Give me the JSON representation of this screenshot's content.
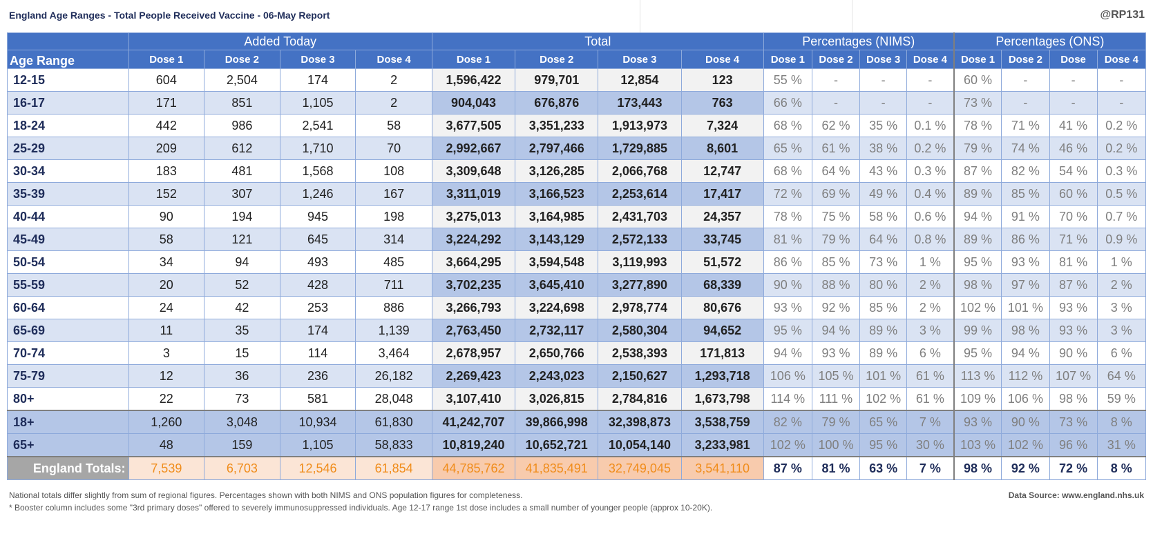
{
  "title": "England Age Ranges - Total People Received Vaccine - 06-May Report",
  "handle": "@RP131",
  "groups": {
    "added": "Added Today",
    "total": "Total",
    "nims": "Percentages (NIMS)",
    "ons": "Percentages (ONS)"
  },
  "age_header": "Age Range",
  "sub_headers": {
    "added": [
      "Dose 1",
      "Dose 2",
      "Dose 3",
      "Dose 4"
    ],
    "total": [
      "Dose 1",
      "Dose 2",
      "Dose 3",
      "Dose 4"
    ],
    "nims": [
      "Dose 1",
      "Dose 2",
      "Dose 3",
      "Dose 4"
    ],
    "ons": [
      "Dose 1",
      "Dose 2",
      "Dose",
      "Dose 4"
    ]
  },
  "rows": [
    {
      "age": "12-15",
      "added": [
        "604",
        "2,504",
        "174",
        "2"
      ],
      "total": [
        "1,596,422",
        "979,701",
        "12,854",
        "123"
      ],
      "nims": [
        "55 %",
        "-",
        "-",
        "-"
      ],
      "ons": [
        "60 %",
        "-",
        "-",
        "-"
      ]
    },
    {
      "age": "16-17",
      "added": [
        "171",
        "851",
        "1,105",
        "2"
      ],
      "total": [
        "904,043",
        "676,876",
        "173,443",
        "763"
      ],
      "nims": [
        "66 %",
        "-",
        "-",
        "-"
      ],
      "ons": [
        "73 %",
        "-",
        "-",
        "-"
      ]
    },
    {
      "age": "18-24",
      "added": [
        "442",
        "986",
        "2,541",
        "58"
      ],
      "total": [
        "3,677,505",
        "3,351,233",
        "1,913,973",
        "7,324"
      ],
      "nims": [
        "68 %",
        "62 %",
        "35 %",
        "0.1 %"
      ],
      "ons": [
        "78 %",
        "71 %",
        "41 %",
        "0.2 %"
      ]
    },
    {
      "age": "25-29",
      "added": [
        "209",
        "612",
        "1,710",
        "70"
      ],
      "total": [
        "2,992,667",
        "2,797,466",
        "1,729,885",
        "8,601"
      ],
      "nims": [
        "65 %",
        "61 %",
        "38 %",
        "0.2 %"
      ],
      "ons": [
        "79 %",
        "74 %",
        "46 %",
        "0.2 %"
      ]
    },
    {
      "age": "30-34",
      "added": [
        "183",
        "481",
        "1,568",
        "108"
      ],
      "total": [
        "3,309,648",
        "3,126,285",
        "2,066,768",
        "12,747"
      ],
      "nims": [
        "68 %",
        "64 %",
        "43 %",
        "0.3 %"
      ],
      "ons": [
        "87 %",
        "82 %",
        "54 %",
        "0.3 %"
      ]
    },
    {
      "age": "35-39",
      "added": [
        "152",
        "307",
        "1,246",
        "167"
      ],
      "total": [
        "3,311,019",
        "3,166,523",
        "2,253,614",
        "17,417"
      ],
      "nims": [
        "72 %",
        "69 %",
        "49 %",
        "0.4 %"
      ],
      "ons": [
        "89 %",
        "85 %",
        "60 %",
        "0.5 %"
      ]
    },
    {
      "age": "40-44",
      "added": [
        "90",
        "194",
        "945",
        "198"
      ],
      "total": [
        "3,275,013",
        "3,164,985",
        "2,431,703",
        "24,357"
      ],
      "nims": [
        "78 %",
        "75 %",
        "58 %",
        "0.6 %"
      ],
      "ons": [
        "94 %",
        "91 %",
        "70 %",
        "0.7 %"
      ]
    },
    {
      "age": "45-49",
      "added": [
        "58",
        "121",
        "645",
        "314"
      ],
      "total": [
        "3,224,292",
        "3,143,129",
        "2,572,133",
        "33,745"
      ],
      "nims": [
        "81 %",
        "79 %",
        "64 %",
        "0.8 %"
      ],
      "ons": [
        "89 %",
        "86 %",
        "71 %",
        "0.9 %"
      ]
    },
    {
      "age": "50-54",
      "added": [
        "34",
        "94",
        "493",
        "485"
      ],
      "total": [
        "3,664,295",
        "3,594,548",
        "3,119,993",
        "51,572"
      ],
      "nims": [
        "86 %",
        "85 %",
        "73 %",
        "1 %"
      ],
      "ons": [
        "95 %",
        "93 %",
        "81 %",
        "1 %"
      ]
    },
    {
      "age": "55-59",
      "added": [
        "20",
        "52",
        "428",
        "711"
      ],
      "total": [
        "3,702,235",
        "3,645,410",
        "3,277,890",
        "68,339"
      ],
      "nims": [
        "90 %",
        "88 %",
        "80 %",
        "2 %"
      ],
      "ons": [
        "98 %",
        "97 %",
        "87 %",
        "2 %"
      ]
    },
    {
      "age": "60-64",
      "added": [
        "24",
        "42",
        "253",
        "886"
      ],
      "total": [
        "3,266,793",
        "3,224,698",
        "2,978,774",
        "80,676"
      ],
      "nims": [
        "93 %",
        "92 %",
        "85 %",
        "2 %"
      ],
      "ons": [
        "102 %",
        "101 %",
        "93 %",
        "3 %"
      ]
    },
    {
      "age": "65-69",
      "added": [
        "11",
        "35",
        "174",
        "1,139"
      ],
      "total": [
        "2,763,450",
        "2,732,117",
        "2,580,304",
        "94,652"
      ],
      "nims": [
        "95 %",
        "94 %",
        "89 %",
        "3 %"
      ],
      "ons": [
        "99 %",
        "98 %",
        "93 %",
        "3 %"
      ]
    },
    {
      "age": "70-74",
      "added": [
        "3",
        "15",
        "114",
        "3,464"
      ],
      "total": [
        "2,678,957",
        "2,650,766",
        "2,538,393",
        "171,813"
      ],
      "nims": [
        "94 %",
        "93 %",
        "89 %",
        "6 %"
      ],
      "ons": [
        "95 %",
        "94 %",
        "90 %",
        "6 %"
      ]
    },
    {
      "age": "75-79",
      "added": [
        "12",
        "36",
        "236",
        "26,182"
      ],
      "total": [
        "2,269,423",
        "2,243,023",
        "2,150,627",
        "1,293,718"
      ],
      "nims": [
        "106 %",
        "105 %",
        "101 %",
        "61 %"
      ],
      "ons": [
        "113 %",
        "112 %",
        "107 %",
        "64 %"
      ]
    },
    {
      "age": "80+",
      "added": [
        "22",
        "73",
        "581",
        "28,048"
      ],
      "total": [
        "3,107,410",
        "3,026,815",
        "2,784,816",
        "1,673,798"
      ],
      "nims": [
        "114 %",
        "111 %",
        "102 %",
        "61 %"
      ],
      "ons": [
        "109 %",
        "106 %",
        "98 %",
        "59 %"
      ]
    }
  ],
  "summary_rows": [
    {
      "age": "18+",
      "added": [
        "1,260",
        "3,048",
        "10,934",
        "61,830"
      ],
      "total": [
        "41,242,707",
        "39,866,998",
        "32,398,873",
        "3,538,759"
      ],
      "nims": [
        "82 %",
        "79 %",
        "65 %",
        "7 %"
      ],
      "ons": [
        "93 %",
        "90 %",
        "73 %",
        "8 %"
      ]
    },
    {
      "age": "65+",
      "added": [
        "48",
        "159",
        "1,105",
        "58,833"
      ],
      "total": [
        "10,819,240",
        "10,652,721",
        "10,054,140",
        "3,233,981"
      ],
      "nims": [
        "102 %",
        "100 %",
        "95 %",
        "30 %"
      ],
      "ons": [
        "103 %",
        "102 %",
        "96 %",
        "31 %"
      ]
    }
  ],
  "england": {
    "label": "England Totals:",
    "added": [
      "7,539",
      "6,703",
      "12,546",
      "61,854"
    ],
    "total": [
      "44,785,762",
      "41,835,491",
      "32,749,045",
      "3,541,110"
    ],
    "nims": [
      "87 %",
      "81 %",
      "63 %",
      "7 %"
    ],
    "ons": [
      "98 %",
      "92 %",
      "72 %",
      "8 %"
    ]
  },
  "notes": {
    "line1": "National totals differ slightly from sum of regional figures. Percentages shown with both NIMS and ONS population figures for completeness.",
    "line2": "* Booster column includes some \"3rd primary doses\" offered to severely immunosuppressed individuals. Age 12-17 range 1st dose includes a small number of younger people (approx 10-20K).",
    "source": "Data Source: www.england.nhs.uk"
  }
}
